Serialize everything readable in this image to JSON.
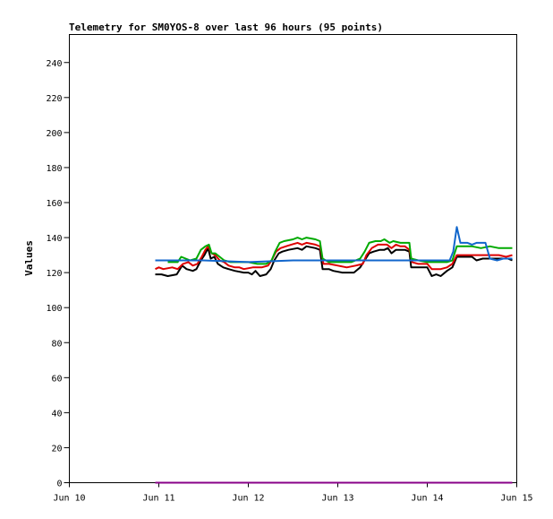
{
  "chart_data": {
    "type": "line",
    "title": "Telemetry for SM0YOS-8 over last 96 hours (95 points)",
    "xlabel": "",
    "ylabel": "Values",
    "ylim": [
      0,
      256
    ],
    "yticks": [
      0,
      20,
      40,
      60,
      80,
      100,
      120,
      140,
      160,
      180,
      200,
      220,
      240
    ],
    "xlim": [
      0,
      5
    ],
    "xticks": [
      {
        "x": 0,
        "label": "Jun 10"
      },
      {
        "x": 1,
        "label": "Jun 11"
      },
      {
        "x": 2,
        "label": "Jun 12"
      },
      {
        "x": 3,
        "label": "Jun 13"
      },
      {
        "x": 4,
        "label": "Jun 14"
      },
      {
        "x": 5,
        "label": "Jun 15"
      }
    ],
    "x_unit": "days since Jun 10 00:00",
    "grid": false,
    "series": [
      {
        "color": "#000000",
        "points": [
          [
            0.96,
            119
          ],
          [
            1.03,
            119
          ],
          [
            1.1,
            118
          ],
          [
            1.2,
            119
          ],
          [
            1.26,
            124
          ],
          [
            1.31,
            122
          ],
          [
            1.38,
            121
          ],
          [
            1.42,
            122
          ],
          [
            1.47,
            127
          ],
          [
            1.51,
            130
          ],
          [
            1.55,
            134
          ],
          [
            1.58,
            128
          ],
          [
            1.62,
            129
          ],
          [
            1.66,
            125
          ],
          [
            1.72,
            123
          ],
          [
            1.78,
            122
          ],
          [
            1.85,
            121
          ],
          [
            1.95,
            120
          ],
          [
            2.0,
            120
          ],
          [
            2.04,
            119
          ],
          [
            2.08,
            121
          ],
          [
            2.13,
            118
          ],
          [
            2.2,
            119
          ],
          [
            2.25,
            122
          ],
          [
            2.29,
            127
          ],
          [
            2.34,
            131
          ],
          [
            2.38,
            132
          ],
          [
            2.45,
            133
          ],
          [
            2.55,
            134
          ],
          [
            2.6,
            133
          ],
          [
            2.65,
            135
          ],
          [
            2.75,
            134
          ],
          [
            2.8,
            133
          ],
          [
            2.83,
            122
          ],
          [
            2.9,
            122
          ],
          [
            2.95,
            121
          ],
          [
            3.05,
            120
          ],
          [
            3.12,
            120
          ],
          [
            3.18,
            120
          ],
          [
            3.25,
            123
          ],
          [
            3.3,
            127
          ],
          [
            3.35,
            131
          ],
          [
            3.4,
            132
          ],
          [
            3.47,
            133
          ],
          [
            3.52,
            133
          ],
          [
            3.56,
            134
          ],
          [
            3.6,
            131
          ],
          [
            3.65,
            133
          ],
          [
            3.7,
            133
          ],
          [
            3.75,
            133
          ],
          [
            3.8,
            132
          ],
          [
            3.82,
            123
          ],
          [
            3.9,
            123
          ],
          [
            4.0,
            123
          ],
          [
            4.05,
            118
          ],
          [
            4.1,
            119
          ],
          [
            4.15,
            118
          ],
          [
            4.22,
            121
          ],
          [
            4.28,
            123
          ],
          [
            4.33,
            129
          ],
          [
            4.4,
            129
          ],
          [
            4.5,
            129
          ],
          [
            4.55,
            127
          ],
          [
            4.62,
            128
          ],
          [
            4.7,
            128
          ],
          [
            4.8,
            128
          ],
          [
            4.9,
            128
          ],
          [
            4.95,
            127
          ]
        ]
      },
      {
        "color": "#dd0000",
        "points": [
          [
            0.96,
            122
          ],
          [
            1.0,
            123
          ],
          [
            1.05,
            122
          ],
          [
            1.15,
            123
          ],
          [
            1.21,
            122
          ],
          [
            1.27,
            125
          ],
          [
            1.33,
            126
          ],
          [
            1.38,
            124
          ],
          [
            1.43,
            125
          ],
          [
            1.48,
            129
          ],
          [
            1.52,
            133
          ],
          [
            1.55,
            135
          ],
          [
            1.59,
            131
          ],
          [
            1.63,
            130
          ],
          [
            1.68,
            127
          ],
          [
            1.73,
            126
          ],
          [
            1.78,
            124
          ],
          [
            1.85,
            123
          ],
          [
            1.9,
            123
          ],
          [
            1.95,
            122
          ],
          [
            2.05,
            123
          ],
          [
            2.15,
            123
          ],
          [
            2.22,
            124
          ],
          [
            2.26,
            127
          ],
          [
            2.31,
            132
          ],
          [
            2.36,
            134
          ],
          [
            2.42,
            135
          ],
          [
            2.48,
            136
          ],
          [
            2.55,
            137
          ],
          [
            2.6,
            136
          ],
          [
            2.65,
            137
          ],
          [
            2.75,
            136
          ],
          [
            2.8,
            135
          ],
          [
            2.84,
            125
          ],
          [
            2.9,
            125
          ],
          [
            3.0,
            124
          ],
          [
            3.1,
            123
          ],
          [
            3.2,
            124
          ],
          [
            3.28,
            125
          ],
          [
            3.32,
            130
          ],
          [
            3.38,
            134
          ],
          [
            3.45,
            136
          ],
          [
            3.5,
            136
          ],
          [
            3.55,
            136
          ],
          [
            3.6,
            134
          ],
          [
            3.65,
            136
          ],
          [
            3.7,
            135
          ],
          [
            3.75,
            135
          ],
          [
            3.8,
            133
          ],
          [
            3.83,
            126
          ],
          [
            3.9,
            125
          ],
          [
            4.0,
            125
          ],
          [
            4.05,
            122
          ],
          [
            4.15,
            122
          ],
          [
            4.22,
            123
          ],
          [
            4.28,
            125
          ],
          [
            4.33,
            130
          ],
          [
            4.4,
            130
          ],
          [
            4.5,
            130
          ],
          [
            4.6,
            130
          ],
          [
            4.7,
            130
          ],
          [
            4.8,
            130
          ],
          [
            4.88,
            129
          ],
          [
            4.95,
            130
          ]
        ]
      },
      {
        "color": "#00aa00",
        "points": [
          [
            1.1,
            126
          ],
          [
            1.15,
            126
          ],
          [
            1.21,
            126
          ],
          [
            1.25,
            129
          ],
          [
            1.3,
            128
          ],
          [
            1.35,
            127
          ],
          [
            1.42,
            128
          ],
          [
            1.47,
            133
          ],
          [
            1.52,
            135
          ],
          [
            1.56,
            136
          ],
          [
            1.59,
            131
          ],
          [
            1.63,
            131
          ],
          [
            1.68,
            129
          ],
          [
            1.73,
            127
          ],
          [
            1.8,
            126
          ],
          [
            1.85,
            126
          ],
          [
            2.0,
            126
          ],
          [
            2.1,
            125
          ],
          [
            2.2,
            125
          ],
          [
            2.26,
            127
          ],
          [
            2.3,
            132
          ],
          [
            2.35,
            137
          ],
          [
            2.4,
            138
          ],
          [
            2.5,
            139
          ],
          [
            2.55,
            140
          ],
          [
            2.6,
            139
          ],
          [
            2.65,
            140
          ],
          [
            2.75,
            139
          ],
          [
            2.8,
            138
          ],
          [
            2.83,
            128
          ],
          [
            2.9,
            126
          ],
          [
            3.0,
            126
          ],
          [
            3.15,
            126
          ],
          [
            3.25,
            128
          ],
          [
            3.3,
            132
          ],
          [
            3.35,
            137
          ],
          [
            3.42,
            138
          ],
          [
            3.48,
            138
          ],
          [
            3.52,
            139
          ],
          [
            3.58,
            137
          ],
          [
            3.62,
            138
          ],
          [
            3.7,
            137
          ],
          [
            3.8,
            137
          ],
          [
            3.82,
            128
          ],
          [
            3.9,
            127
          ],
          [
            4.0,
            126
          ],
          [
            4.15,
            126
          ],
          [
            4.22,
            126
          ],
          [
            4.28,
            127
          ],
          [
            4.33,
            135
          ],
          [
            4.4,
            135
          ],
          [
            4.5,
            135
          ],
          [
            4.6,
            134
          ],
          [
            4.7,
            135
          ],
          [
            4.8,
            134
          ],
          [
            4.95,
            134
          ]
        ]
      },
      {
        "color": "#1166cc",
        "points": [
          [
            0.96,
            127
          ],
          [
            1.5,
            127
          ],
          [
            2.0,
            126
          ],
          [
            2.5,
            127
          ],
          [
            3.0,
            127
          ],
          [
            3.5,
            127
          ],
          [
            4.0,
            127
          ],
          [
            4.25,
            127
          ],
          [
            4.29,
            132
          ],
          [
            4.33,
            146
          ],
          [
            4.37,
            137
          ],
          [
            4.45,
            137
          ],
          [
            4.5,
            136
          ],
          [
            4.55,
            137
          ],
          [
            4.65,
            137
          ],
          [
            4.7,
            128
          ],
          [
            4.78,
            127
          ],
          [
            4.85,
            128
          ],
          [
            4.95,
            128
          ]
        ]
      },
      {
        "color": "#880088",
        "points": [
          [
            0.96,
            0
          ],
          [
            4.95,
            0
          ]
        ]
      }
    ]
  }
}
